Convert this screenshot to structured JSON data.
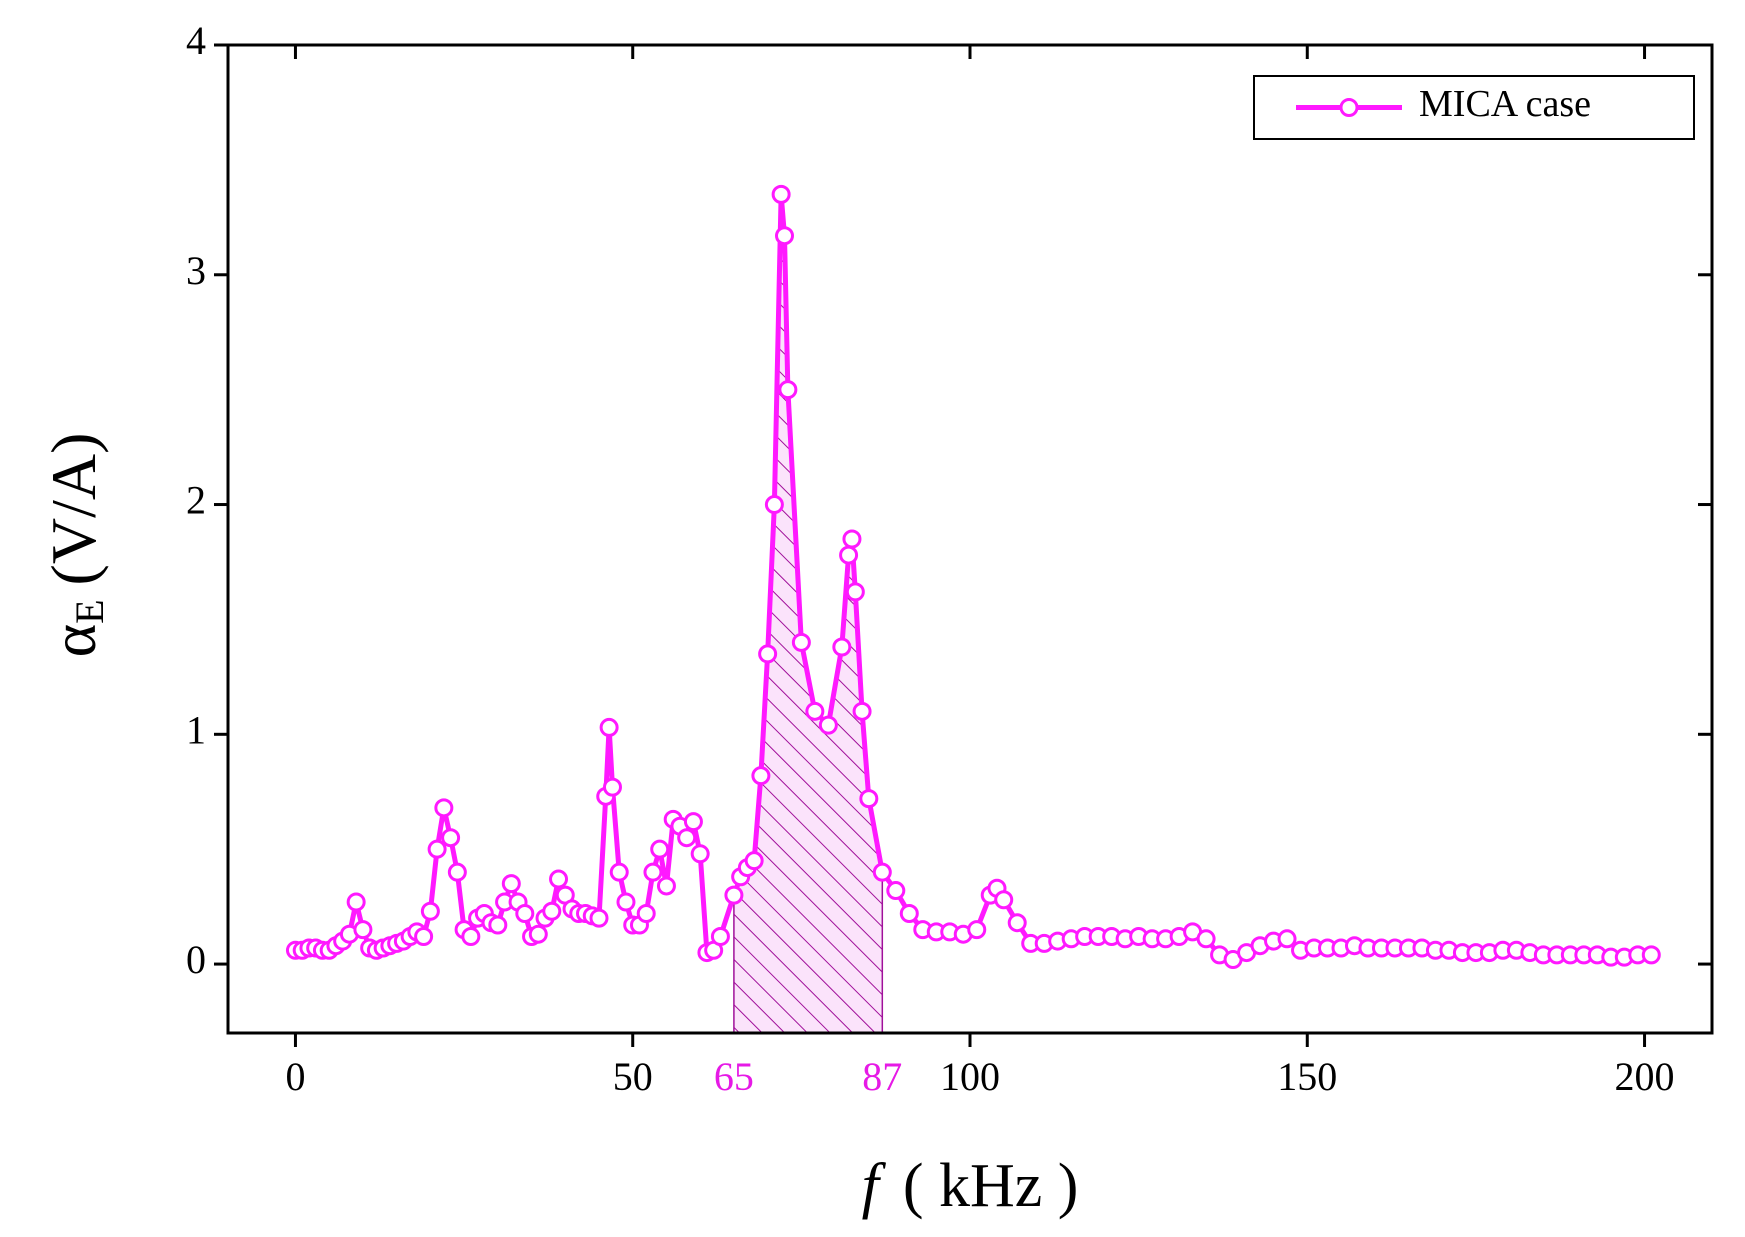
{
  "chart_data": {
    "type": "line",
    "ylabel": {
      "symbol": "α",
      "subscript": "E",
      "unit": "(V/A)"
    },
    "xlabel": {
      "symbol": "f",
      "unit": "( kHz )"
    },
    "xlim": [
      -10,
      210
    ],
    "ylim": [
      -0.3,
      4
    ],
    "xticks": [
      0,
      50,
      100,
      150,
      200
    ],
    "highlight_xticks": [
      65,
      87
    ],
    "highlight_color": "#e619e6",
    "yticks": [
      0,
      1,
      2,
      3,
      4
    ],
    "legend": "upper right",
    "series": [
      {
        "name": "MICA case",
        "color": "#ff19ff",
        "x": [
          0,
          1,
          2,
          3,
          4,
          5,
          6,
          7,
          8,
          9,
          10,
          11,
          12,
          13,
          14,
          15,
          16,
          17,
          18,
          19,
          20,
          21,
          22,
          23,
          24,
          25,
          26,
          27,
          28,
          29,
          30,
          31,
          32,
          33,
          34,
          35,
          36,
          37,
          38,
          39,
          40,
          41,
          42,
          43,
          44,
          45,
          46,
          46.5,
          47,
          48,
          49,
          50,
          51,
          52,
          53,
          54,
          55,
          56,
          57,
          58,
          59,
          60,
          61,
          62,
          63,
          65,
          66,
          67,
          68,
          69,
          70,
          71,
          72,
          72.5,
          73,
          75,
          77,
          79,
          81,
          82,
          82.5,
          83,
          84,
          85,
          87,
          89,
          91,
          93,
          95,
          97,
          99,
          101,
          103,
          104,
          105,
          107,
          109,
          111,
          113,
          115,
          117,
          119,
          121,
          123,
          125,
          127,
          129,
          131,
          133,
          135,
          137,
          139,
          141,
          143,
          145,
          147,
          149,
          151,
          153,
          155,
          157,
          159,
          161,
          163,
          165,
          167,
          169,
          171,
          173,
          175,
          177,
          179,
          181,
          183,
          185,
          187,
          189,
          191,
          193,
          195,
          197,
          199,
          201
        ],
        "values": [
          0.06,
          0.06,
          0.07,
          0.07,
          0.06,
          0.06,
          0.08,
          0.1,
          0.13,
          0.27,
          0.15,
          0.07,
          0.06,
          0.07,
          0.08,
          0.09,
          0.1,
          0.12,
          0.14,
          0.12,
          0.23,
          0.5,
          0.68,
          0.55,
          0.4,
          0.15,
          0.12,
          0.2,
          0.22,
          0.18,
          0.17,
          0.27,
          0.35,
          0.27,
          0.22,
          0.12,
          0.13,
          0.2,
          0.23,
          0.37,
          0.3,
          0.24,
          0.22,
          0.22,
          0.21,
          0.2,
          0.73,
          1.03,
          0.77,
          0.4,
          0.27,
          0.17,
          0.17,
          0.22,
          0.4,
          0.5,
          0.34,
          0.63,
          0.6,
          0.55,
          0.62,
          0.48,
          0.05,
          0.06,
          0.12,
          0.3,
          0.38,
          0.42,
          0.45,
          0.82,
          1.35,
          2.0,
          3.35,
          3.17,
          2.5,
          1.4,
          1.1,
          1.04,
          1.38,
          1.78,
          1.85,
          1.62,
          1.1,
          0.72,
          0.4,
          0.32,
          0.22,
          0.15,
          0.14,
          0.14,
          0.13,
          0.15,
          0.3,
          0.33,
          0.28,
          0.18,
          0.09,
          0.09,
          0.1,
          0.11,
          0.12,
          0.12,
          0.12,
          0.11,
          0.12,
          0.11,
          0.11,
          0.12,
          0.14,
          0.11,
          0.04,
          0.02,
          0.05,
          0.08,
          0.1,
          0.11,
          0.06,
          0.07,
          0.07,
          0.07,
          0.08,
          0.07,
          0.07,
          0.07,
          0.07,
          0.07,
          0.06,
          0.06,
          0.05,
          0.05,
          0.05,
          0.06,
          0.06,
          0.05,
          0.04,
          0.04,
          0.04,
          0.04,
          0.04,
          0.03,
          0.03,
          0.04,
          0.04
        ]
      }
    ]
  }
}
